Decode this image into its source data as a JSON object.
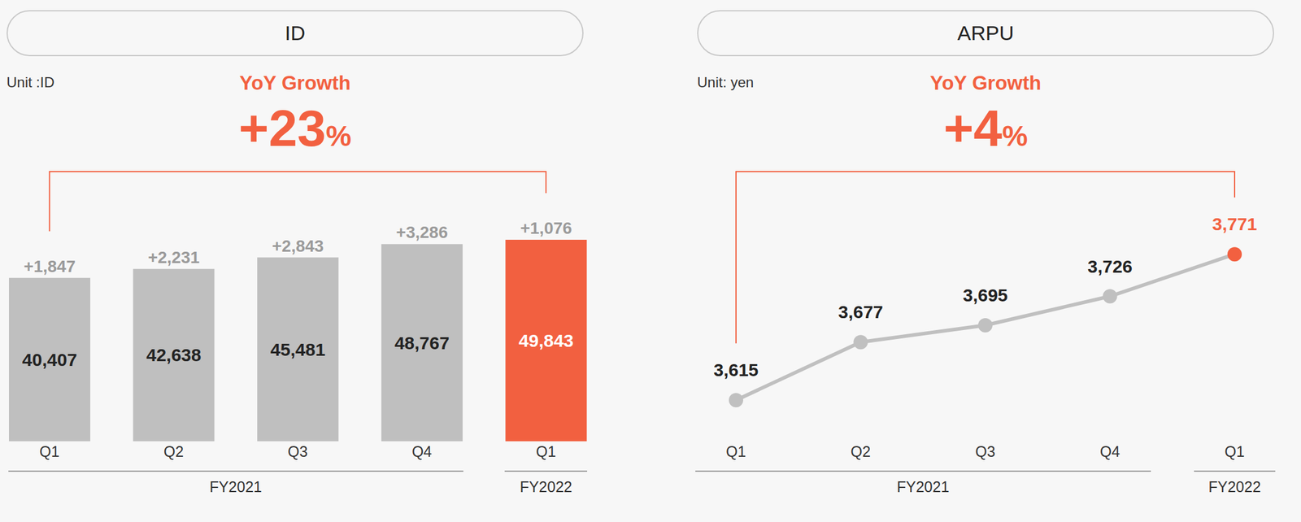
{
  "chart_data": [
    {
      "type": "bar",
      "title": "ID",
      "subtitle": "Unit :ID",
      "categories": [
        "Q1",
        "Q2",
        "Q3",
        "Q4",
        "Q1"
      ],
      "fiscal_years": [
        "FY2021",
        "FY2021",
        "FY2021",
        "FY2021",
        "FY2022"
      ],
      "values": [
        40407,
        42638,
        45481,
        48767,
        49843
      ],
      "value_labels": [
        "40,407",
        "42,638",
        "45,481",
        "48,767",
        "49,843"
      ],
      "data_labels": true,
      "changes": [
        1847,
        2231,
        2843,
        3286,
        1076
      ],
      "change_labels": [
        "+1,847",
        "+2,231",
        "+2,843",
        "+3,286",
        "+1,076"
      ],
      "colors": [
        "#bfbfbf",
        "#bfbfbf",
        "#bfbfbf",
        "#bfbfbf",
        "#f26040"
      ],
      "yoy_growth": {
        "label": "YoY Growth",
        "value": 23,
        "value_label": "+23%"
      },
      "tick_labels": "x"
    },
    {
      "type": "line",
      "title": "ARPU",
      "subtitle": "Unit: yen",
      "categories": [
        "Q1",
        "Q2",
        "Q3",
        "Q4",
        "Q1"
      ],
      "fiscal_years": [
        "FY2021",
        "FY2021",
        "FY2021",
        "FY2021",
        "FY2022"
      ],
      "values": [
        3615,
        3677,
        3695,
        3726,
        3771
      ],
      "value_labels": [
        "3,615",
        "3,677",
        "3,695",
        "3,726",
        "3,771"
      ],
      "data_labels": true,
      "color": "#c0c0c0",
      "colors": [
        "#c0c0c0",
        "#c0c0c0",
        "#c0c0c0",
        "#c0c0c0",
        "#f26040"
      ],
      "marker": "circle",
      "yoy_growth": {
        "label": "YoY Growth",
        "value": 4,
        "value_label": "+4%"
      },
      "tick_labels": "x"
    }
  ]
}
